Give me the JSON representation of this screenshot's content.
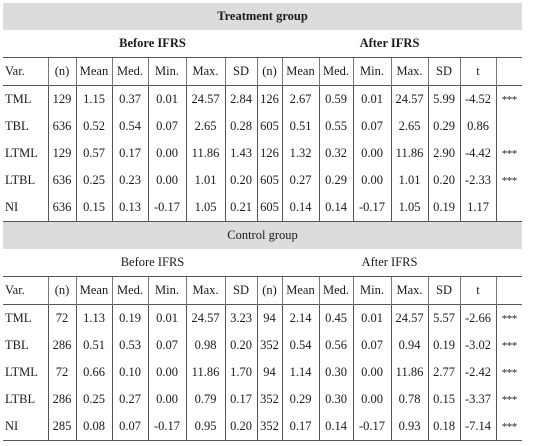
{
  "treatment": {
    "title": "Treatment group",
    "before_label": "Before IFRS",
    "after_label": "After IFRS",
    "headers": [
      "Var.",
      "(n)",
      "Mean",
      "Med.",
      "Min.",
      "Max.",
      "SD",
      "(n)",
      "Mean",
      "Med.",
      "Min.",
      "Max.",
      "SD",
      "t",
      ""
    ],
    "rows": [
      [
        "TML",
        "129",
        "1.15",
        "0.37",
        "0.01",
        "24.57",
        "2.84",
        "126",
        "2.67",
        "0.59",
        "0.01",
        "24.57",
        "5.99",
        "-4.52",
        "***"
      ],
      [
        "TBL",
        "636",
        "0.52",
        "0.54",
        "0.07",
        "2.65",
        "0.28",
        "605",
        "0.51",
        "0.55",
        "0.07",
        "2.65",
        "0.29",
        "0.86",
        ""
      ],
      [
        "LTML",
        "129",
        "0.57",
        "0.17",
        "0.00",
        "11.86",
        "1.43",
        "126",
        "1.32",
        "0.32",
        "0.00",
        "11.86",
        "2.90",
        "-4.42",
        "***"
      ],
      [
        "LTBL",
        "636",
        "0.25",
        "0.23",
        "0.00",
        "1.01",
        "0.20",
        "605",
        "0.27",
        "0.29",
        "0.00",
        "1.01",
        "0.20",
        "-2.33",
        "***"
      ],
      [
        "NI",
        "636",
        "0.15",
        "0.13",
        "-0.17",
        "1.05",
        "0.21",
        "605",
        "0.14",
        "0.14",
        "-0.17",
        "1.05",
        "0.19",
        "1.17",
        ""
      ]
    ]
  },
  "control": {
    "title": "Control group",
    "before_label": "Before IFRS",
    "after_label": "After IFRS",
    "headers": [
      "Var.",
      "(n)",
      "Mean",
      "Med.",
      "Min.",
      "Max.",
      "SD",
      "(n)",
      "Mean",
      "Med.",
      "Min.",
      "Max.",
      "SD",
      "t",
      ""
    ],
    "rows": [
      [
        "TML",
        "72",
        "1.13",
        "0.19",
        "0.01",
        "24.57",
        "3.23",
        "94",
        "2.14",
        "0.45",
        "0.01",
        "24.57",
        "5.57",
        "-2.66",
        "***"
      ],
      [
        "TBL",
        "286",
        "0.51",
        "0.53",
        "0.07",
        "0.98",
        "0.20",
        "352",
        "0.54",
        "0.56",
        "0.07",
        "0.94",
        "0.19",
        "-3.02",
        "***"
      ],
      [
        "LTML",
        "72",
        "0.66",
        "0.10",
        "0.00",
        "11.86",
        "1.70",
        "94",
        "1.14",
        "0.30",
        "0.00",
        "11.86",
        "2.77",
        "-2.42",
        "***"
      ],
      [
        "LTBL",
        "286",
        "0.25",
        "0.27",
        "0.00",
        "0.79",
        "0.17",
        "352",
        "0.29",
        "0.30",
        "0.00",
        "0.78",
        "0.15",
        "-3.37",
        "***"
      ],
      [
        "NI",
        "285",
        "0.08",
        "0.07",
        "-0.17",
        "0.95",
        "0.20",
        "352",
        "0.17",
        "0.14",
        "-0.17",
        "0.93",
        "0.18",
        "-7.14",
        "***"
      ]
    ]
  },
  "colors": {
    "header_band": "#dcdcdc",
    "rules": "#555555",
    "text": "#1a1a1a"
  }
}
